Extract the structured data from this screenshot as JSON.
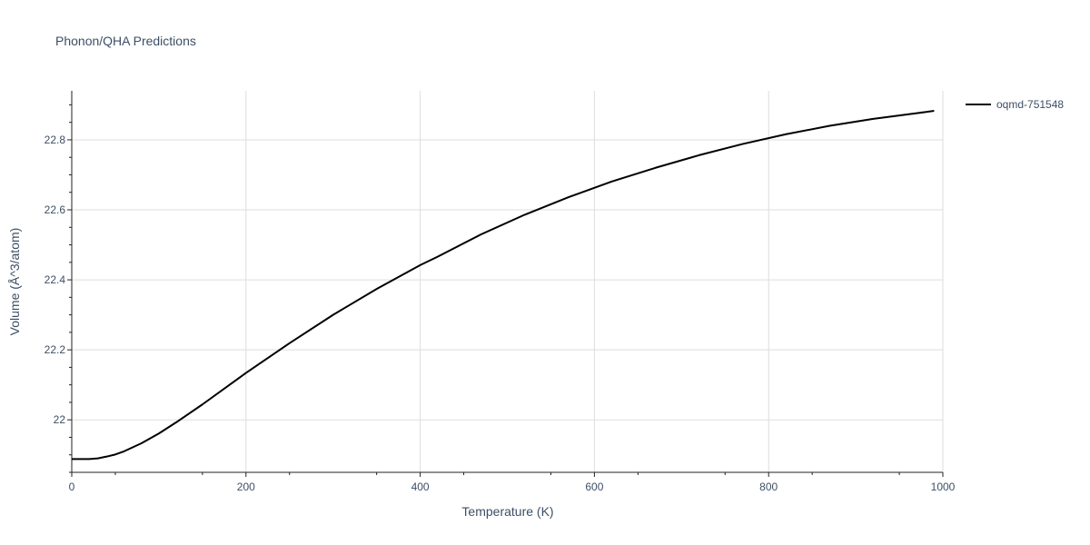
{
  "chart_data": {
    "type": "line",
    "title": "Phonon/QHA Predictions",
    "xlabel": "Temperature (K)",
    "ylabel": "Volume (Å^3/atom)",
    "xlim": [
      0,
      1000
    ],
    "ylim": [
      21.85,
      22.94
    ],
    "x_ticks": [
      0,
      200,
      400,
      600,
      800,
      1000
    ],
    "x_tick_labels": [
      "0",
      "200",
      "400",
      "600",
      "800",
      "1000"
    ],
    "y_ticks": [
      22.0,
      22.2,
      22.4,
      22.6,
      22.8
    ],
    "y_tick_labels": [
      "22",
      "22.2",
      "22.4",
      "22.6",
      "22.8"
    ],
    "grid": true,
    "legend_position": "top-right",
    "series": [
      {
        "name": "oqmd-751548",
        "color": "#000000",
        "x": [
          0,
          10,
          20,
          30,
          40,
          50,
          60,
          80,
          100,
          120,
          150,
          200,
          250,
          300,
          350,
          400,
          420,
          470,
          520,
          570,
          620,
          670,
          720,
          770,
          820,
          870,
          920,
          970,
          990
        ],
        "y": [
          21.888,
          21.888,
          21.888,
          21.89,
          21.895,
          21.901,
          21.91,
          21.933,
          21.961,
          21.993,
          22.044,
          22.134,
          22.219,
          22.3,
          22.374,
          22.442,
          22.466,
          22.53,
          22.586,
          22.636,
          22.681,
          22.72,
          22.756,
          22.788,
          22.816,
          22.84,
          22.86,
          22.876,
          22.883
        ]
      }
    ]
  }
}
